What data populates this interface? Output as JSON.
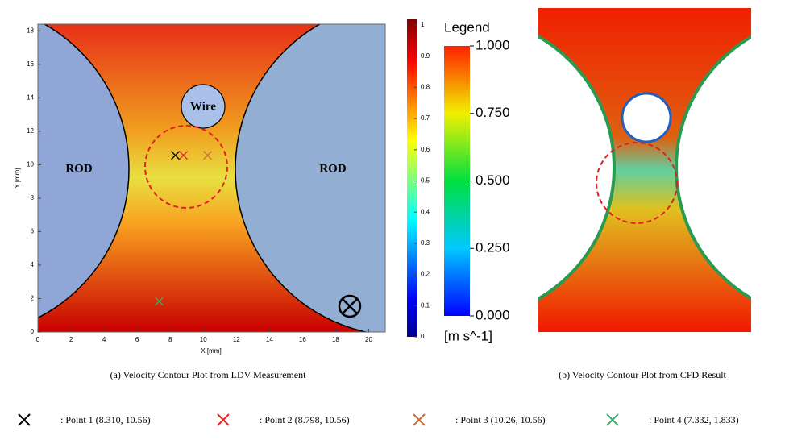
{
  "panel_a": {
    "caption": "(a) Velocity Contour Plot from LDV Measurement",
    "xlabel": "X [mm]",
    "ylabel": "Y [mm]",
    "xlim": [
      0,
      21
    ],
    "xticks": [
      0,
      2,
      4,
      6,
      8,
      10,
      12,
      14,
      16,
      18,
      20
    ],
    "ylim": [
      0,
      18.4
    ],
    "yticks": [
      0,
      2,
      4,
      6,
      8,
      10,
      12,
      14,
      16,
      18
    ],
    "annotations": [
      "ROD",
      "ROD",
      "Wire"
    ],
    "colorbar": {
      "lim": [
        0,
        1
      ],
      "ticks": [
        0,
        0.1,
        0.2,
        0.3,
        0.4,
        0.5,
        0.6,
        0.7,
        0.8,
        0.9,
        1
      ]
    }
  },
  "panel_b": {
    "caption": "(b) Velocity Contour Plot from CFD Result",
    "legend_title": "Legend",
    "unit": "[m s^-1]",
    "colorbar": {
      "lim": [
        0,
        1
      ],
      "ticks": [
        {
          "value": 1,
          "label": "1.000"
        },
        {
          "value": 0.75,
          "label": "0.750"
        },
        {
          "value": 0.5,
          "label": "0.500"
        },
        {
          "value": 0.25,
          "label": "0.250"
        },
        {
          "value": 0,
          "label": "0.000"
        }
      ]
    }
  },
  "points": [
    {
      "label": ": Point 1 (8.310, 10.56)",
      "x": 8.31,
      "y": 10.56,
      "color": "#000000"
    },
    {
      "label": ": Point 2 (8.798, 10.56)",
      "x": 8.798,
      "y": 10.56,
      "color": "#e8262a"
    },
    {
      "label": ": Point 3 (10.26, 10.56)",
      "x": 10.26,
      "y": 10.56,
      "color": "#c8703a"
    },
    {
      "label": ": Point 4 (7.332, 1.833)",
      "x": 7.332,
      "y": 1.833,
      "color": "#3cae6a"
    }
  ]
}
